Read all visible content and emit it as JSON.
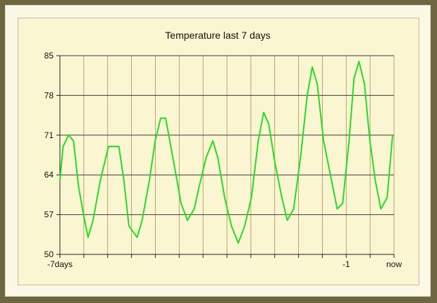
{
  "chart_data": {
    "type": "line",
    "title": "Temperature last 7 days",
    "xlabel": "",
    "ylabel": "",
    "ylim": [
      50,
      85
    ],
    "yticks": [
      50,
      57,
      64,
      71,
      78,
      85
    ],
    "x_range_days": [
      -7,
      0
    ],
    "x_tick_labels": [
      {
        "x": -7,
        "label": "-7days"
      },
      {
        "x": -1,
        "label": "-1"
      },
      {
        "x": 0,
        "label": "now"
      }
    ],
    "x_gridlines_days": [
      -7,
      -6.5,
      -6,
      -5.5,
      -5,
      -4.5,
      -4,
      -3.5,
      -3,
      -2.5,
      -2,
      -1.5,
      -1,
      -0.5,
      0
    ],
    "grid": true,
    "line_color": "#22dd22",
    "series": [
      {
        "name": "",
        "points": [
          [
            -7.0,
            63
          ],
          [
            -6.93,
            69
          ],
          [
            -6.81,
            71
          ],
          [
            -6.7,
            70
          ],
          [
            -6.59,
            62
          ],
          [
            -6.48,
            57
          ],
          [
            -6.38,
            53
          ],
          [
            -6.27,
            56
          ],
          [
            -6.11,
            63
          ],
          [
            -5.93,
            69
          ],
          [
            -5.7,
            69
          ],
          [
            -5.59,
            63
          ],
          [
            -5.48,
            55
          ],
          [
            -5.3,
            53
          ],
          [
            -5.19,
            56
          ],
          [
            -5.03,
            63
          ],
          [
            -4.9,
            70
          ],
          [
            -4.78,
            74
          ],
          [
            -4.67,
            74
          ],
          [
            -4.51,
            67
          ],
          [
            -4.33,
            59
          ],
          [
            -4.19,
            56
          ],
          [
            -4.04,
            58
          ],
          [
            -3.93,
            62
          ],
          [
            -3.78,
            67
          ],
          [
            -3.63,
            70
          ],
          [
            -3.52,
            67
          ],
          [
            -3.37,
            60
          ],
          [
            -3.22,
            55
          ],
          [
            -3.07,
            52
          ],
          [
            -2.93,
            55
          ],
          [
            -2.78,
            60
          ],
          [
            -2.63,
            70
          ],
          [
            -2.51,
            75
          ],
          [
            -2.4,
            73
          ],
          [
            -2.26,
            66
          ],
          [
            -2.11,
            60
          ],
          [
            -1.99,
            56
          ],
          [
            -1.85,
            58
          ],
          [
            -1.7,
            67
          ],
          [
            -1.55,
            78
          ],
          [
            -1.44,
            83
          ],
          [
            -1.33,
            80
          ],
          [
            -1.19,
            70
          ],
          [
            -1.04,
            64
          ],
          [
            -0.89,
            58
          ],
          [
            -0.77,
            59
          ],
          [
            -0.63,
            70
          ],
          [
            -0.52,
            81
          ],
          [
            -0.41,
            84
          ],
          [
            -0.29,
            80
          ],
          [
            -0.17,
            70
          ],
          [
            -0.05,
            63
          ],
          [
            0.07,
            58
          ],
          [
            0.21,
            60
          ],
          [
            0.33,
            71
          ]
        ]
      }
    ]
  }
}
